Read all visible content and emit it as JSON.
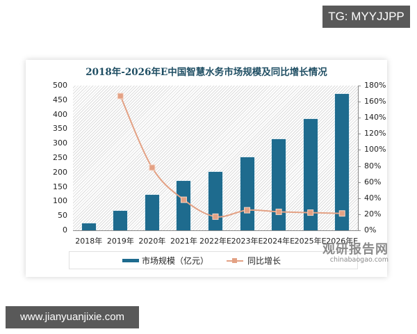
{
  "overlay": {
    "top_tag": "TG: MYYJJPP",
    "bottom_tag": "www.jianyuanjixie.com"
  },
  "watermark": {
    "cn": "观研报告网",
    "en": "chinabaogao.com"
  },
  "chart_data": {
    "type": "bar",
    "title": "2018年-2026年E中国智慧水务市场规模及同比增长情况",
    "categories": [
      "2018年",
      "2019年",
      "2020年",
      "2021年",
      "2022年E",
      "2023年E",
      "2024年E",
      "2025年E",
      "2026年E"
    ],
    "series": [
      {
        "name": "市场规模（亿元）",
        "type": "bar",
        "axis": "left",
        "color": "#1e6b8e",
        "values": [
          24,
          67,
          122,
          170,
          202,
          252,
          315,
          385,
          471
        ]
      },
      {
        "name": "同比增长",
        "type": "line",
        "axis": "right",
        "color": "#e3a184",
        "values": [
          null,
          167,
          78,
          38,
          17,
          25,
          23,
          22,
          21
        ]
      }
    ],
    "left_axis": {
      "ylim": [
        0,
        500
      ],
      "ticks": [
        "0",
        "50",
        "100",
        "150",
        "200",
        "250",
        "300",
        "350",
        "400",
        "450",
        "500"
      ]
    },
    "right_axis": {
      "ylim": [
        0,
        180
      ],
      "ticks": [
        "0%",
        "20%",
        "40%",
        "60%",
        "80%",
        "100%",
        "120%",
        "140%",
        "160%",
        "180%"
      ]
    },
    "xlabel": "",
    "ylabel": "",
    "legend_position": "bottom",
    "grid": false
  }
}
